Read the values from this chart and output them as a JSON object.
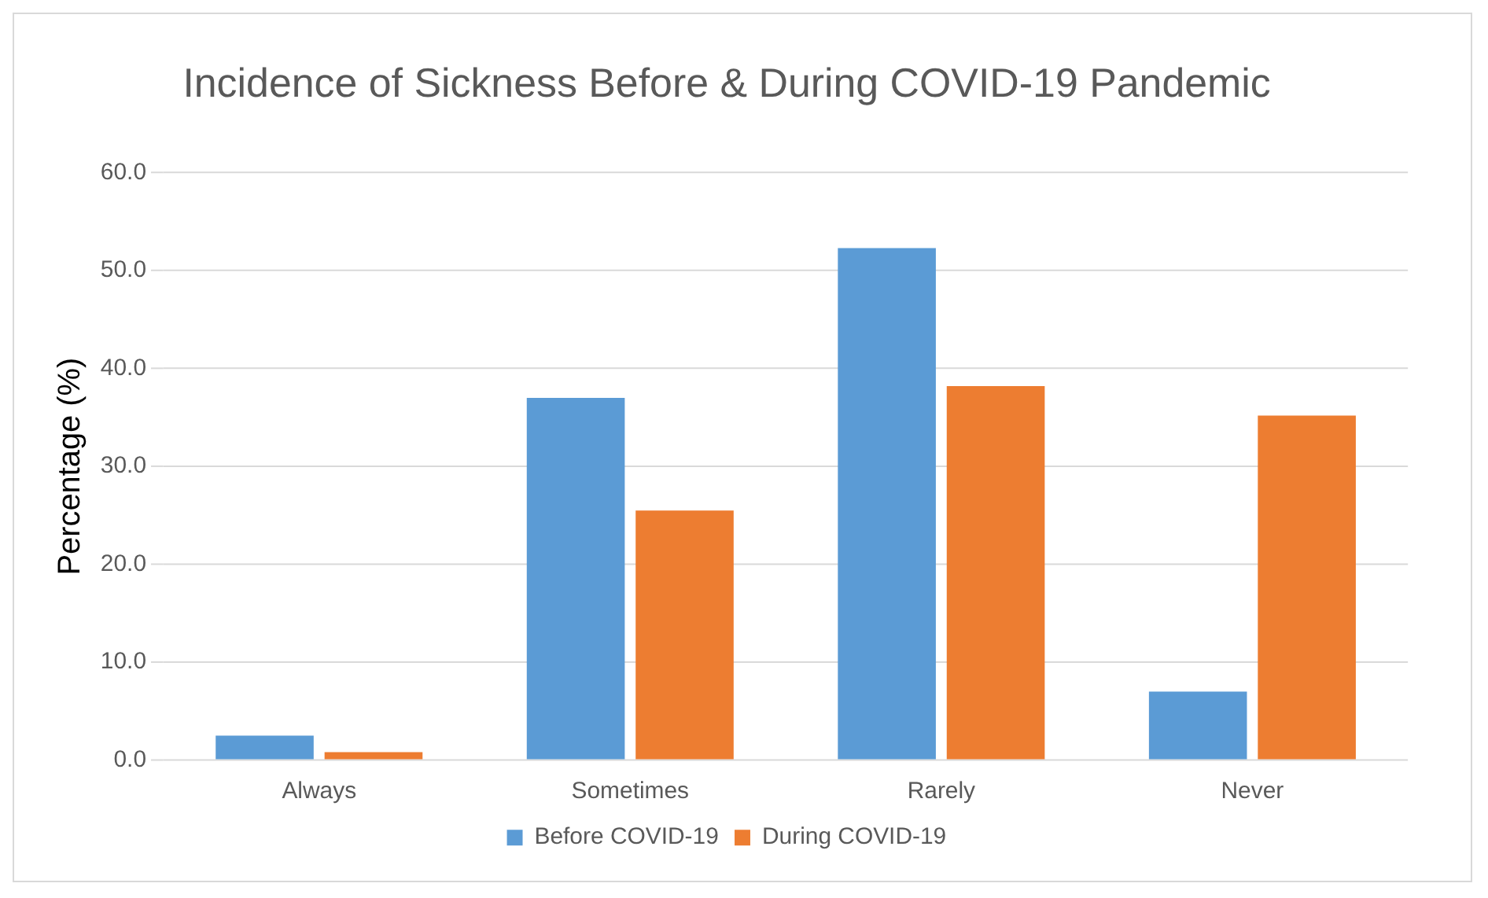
{
  "chart_data": {
    "type": "bar",
    "title": "Incidence of Sickness Before & During COVID-19 Pandemic",
    "ylabel": "Percentage (%)",
    "categories": [
      "Always",
      "Sometimes",
      "Rarely",
      "Never"
    ],
    "series": [
      {
        "name": "Before COVID-19",
        "color": "#5b9bd5",
        "values": [
          2.5,
          37.0,
          52.3,
          7.0
        ]
      },
      {
        "name": "During COVID-19",
        "color": "#ed7d31",
        "values": [
          0.8,
          25.5,
          38.2,
          35.2
        ]
      }
    ],
    "ylim": [
      0,
      60
    ],
    "yticks": [
      {
        "value": 0,
        "label": "0.0"
      },
      {
        "value": 10,
        "label": "10.0"
      },
      {
        "value": 20,
        "label": "20.0"
      },
      {
        "value": 30,
        "label": "30.0"
      },
      {
        "value": 40,
        "label": "40.0"
      },
      {
        "value": 50,
        "label": "50.0"
      },
      {
        "value": 60,
        "label": "60.0"
      }
    ],
    "grid": "y",
    "legend": "bottom"
  }
}
